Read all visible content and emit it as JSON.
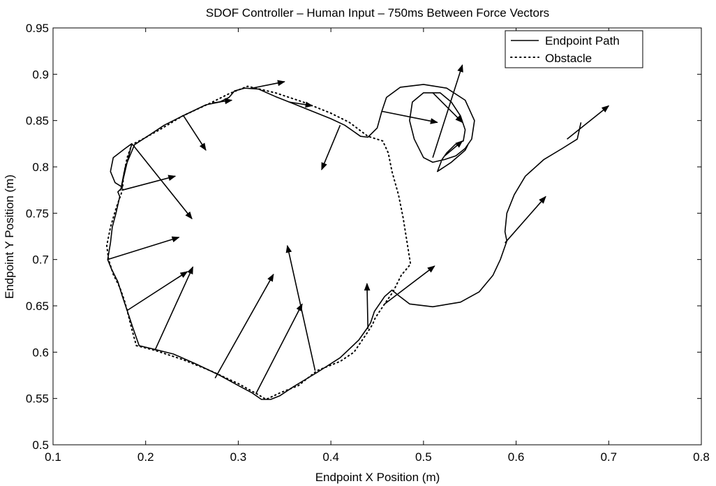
{
  "chart_data": {
    "type": "line",
    "title": "SDOF Controller – Human Input – 750ms Between Force Vectors",
    "xlabel": "Endpoint X Position (m)",
    "ylabel": "Endpoint Y Position (m)",
    "xlim": [
      0.1,
      0.8
    ],
    "ylim": [
      0.5,
      0.95
    ],
    "x_ticks": [
      0.1,
      0.2,
      0.3,
      0.4,
      0.5,
      0.6,
      0.7,
      0.8
    ],
    "y_ticks": [
      0.5,
      0.55,
      0.6,
      0.65,
      0.7,
      0.75,
      0.8,
      0.85,
      0.9,
      0.95
    ],
    "x_tick_labels": [
      "0.1",
      "0.2",
      "0.3",
      "0.4",
      "0.5",
      "0.6",
      "0.7",
      "0.8"
    ],
    "y_tick_labels": [
      "0.5",
      "0.55",
      "0.6",
      "0.65",
      "0.7",
      "0.75",
      "0.8",
      "0.85",
      "0.9",
      "0.95"
    ],
    "grid": false,
    "legend_position": "top-right",
    "legend": [
      {
        "label": "Endpoint Path",
        "style": "solid"
      },
      {
        "label": "Obstacle",
        "style": "dotted"
      }
    ],
    "series": [
      {
        "name": "Endpoint Path",
        "style": "solid",
        "color": "#000000",
        "points": [
          [
            0.67,
            0.848
          ],
          [
            0.666,
            0.83
          ],
          [
            0.65,
            0.82
          ],
          [
            0.63,
            0.808
          ],
          [
            0.61,
            0.79
          ],
          [
            0.598,
            0.77
          ],
          [
            0.59,
            0.75
          ],
          [
            0.588,
            0.73
          ],
          [
            0.59,
            0.72
          ],
          [
            0.583,
            0.7
          ],
          [
            0.575,
            0.683
          ],
          [
            0.56,
            0.665
          ],
          [
            0.54,
            0.654
          ],
          [
            0.51,
            0.649
          ],
          [
            0.485,
            0.652
          ],
          [
            0.472,
            0.662
          ],
          [
            0.466,
            0.667
          ],
          [
            0.458,
            0.66
          ],
          [
            0.447,
            0.644
          ],
          [
            0.443,
            0.632
          ],
          [
            0.44,
            0.627
          ],
          [
            0.43,
            0.613
          ],
          [
            0.41,
            0.594
          ],
          [
            0.385,
            0.578
          ],
          [
            0.36,
            0.563
          ],
          [
            0.345,
            0.553
          ],
          [
            0.335,
            0.549
          ],
          [
            0.325,
            0.549
          ],
          [
            0.315,
            0.556
          ],
          [
            0.3,
            0.564
          ],
          [
            0.28,
            0.575
          ],
          [
            0.255,
            0.587
          ],
          [
            0.23,
            0.598
          ],
          [
            0.21,
            0.603
          ],
          [
            0.193,
            0.607
          ],
          [
            0.186,
            0.627
          ],
          [
            0.18,
            0.645
          ],
          [
            0.175,
            0.66
          ],
          [
            0.17,
            0.676
          ],
          [
            0.163,
            0.69
          ],
          [
            0.159,
            0.7
          ],
          [
            0.162,
            0.718
          ],
          [
            0.164,
            0.735
          ],
          [
            0.168,
            0.75
          ],
          [
            0.172,
            0.768
          ],
          [
            0.17,
            0.773
          ],
          [
            0.175,
            0.778
          ],
          [
            0.167,
            0.783
          ],
          [
            0.162,
            0.795
          ],
          [
            0.165,
            0.81
          ],
          [
            0.178,
            0.82
          ],
          [
            0.185,
            0.825
          ],
          [
            0.18,
            0.805
          ],
          [
            0.173,
            0.775
          ],
          [
            0.178,
            0.8
          ],
          [
            0.188,
            0.824
          ],
          [
            0.205,
            0.835
          ],
          [
            0.22,
            0.845
          ],
          [
            0.24,
            0.855
          ],
          [
            0.265,
            0.867
          ],
          [
            0.28,
            0.87
          ],
          [
            0.29,
            0.875
          ],
          [
            0.296,
            0.882
          ],
          [
            0.307,
            0.885
          ],
          [
            0.322,
            0.884
          ],
          [
            0.34,
            0.876
          ],
          [
            0.36,
            0.868
          ],
          [
            0.38,
            0.86
          ],
          [
            0.4,
            0.852
          ],
          [
            0.415,
            0.845
          ],
          [
            0.425,
            0.838
          ],
          [
            0.432,
            0.833
          ],
          [
            0.44,
            0.832
          ],
          [
            0.45,
            0.842
          ],
          [
            0.455,
            0.86
          ],
          [
            0.46,
            0.875
          ],
          [
            0.475,
            0.886
          ],
          [
            0.5,
            0.889
          ],
          [
            0.525,
            0.885
          ],
          [
            0.545,
            0.872
          ],
          [
            0.555,
            0.85
          ],
          [
            0.552,
            0.83
          ],
          [
            0.545,
            0.82
          ],
          [
            0.535,
            0.812
          ],
          [
            0.523,
            0.808
          ],
          [
            0.51,
            0.805
          ],
          [
            0.5,
            0.81
          ],
          [
            0.49,
            0.83
          ],
          [
            0.485,
            0.85
          ],
          [
            0.488,
            0.87
          ],
          [
            0.5,
            0.88
          ],
          [
            0.518,
            0.88
          ],
          [
            0.53,
            0.87
          ],
          [
            0.54,
            0.855
          ],
          [
            0.545,
            0.84
          ],
          [
            0.543,
            0.828
          ],
          [
            0.534,
            0.824
          ],
          [
            0.525,
            0.815
          ],
          [
            0.52,
            0.808
          ],
          [
            0.515,
            0.795
          ],
          [
            0.53,
            0.805
          ],
          [
            0.545,
            0.818
          ],
          [
            0.548,
            0.824
          ]
        ]
      },
      {
        "name": "Obstacle",
        "style": "dotted",
        "color": "#000000",
        "points": [
          [
            0.19,
            0.607
          ],
          [
            0.21,
            0.602
          ],
          [
            0.24,
            0.592
          ],
          [
            0.27,
            0.58
          ],
          [
            0.3,
            0.566
          ],
          [
            0.32,
            0.555
          ],
          [
            0.33,
            0.549
          ],
          [
            0.345,
            0.556
          ],
          [
            0.365,
            0.564
          ],
          [
            0.385,
            0.58
          ],
          [
            0.41,
            0.59
          ],
          [
            0.425,
            0.6
          ],
          [
            0.44,
            0.622
          ],
          [
            0.445,
            0.63
          ],
          [
            0.448,
            0.637
          ],
          [
            0.458,
            0.652
          ],
          [
            0.467,
            0.665
          ],
          [
            0.476,
            0.683
          ],
          [
            0.486,
            0.695
          ],
          [
            0.482,
            0.72
          ],
          [
            0.478,
            0.745
          ],
          [
            0.473,
            0.77
          ],
          [
            0.466,
            0.795
          ],
          [
            0.462,
            0.815
          ],
          [
            0.456,
            0.828
          ],
          [
            0.44,
            0.833
          ],
          [
            0.42,
            0.848
          ],
          [
            0.4,
            0.858
          ],
          [
            0.37,
            0.87
          ],
          [
            0.34,
            0.88
          ],
          [
            0.31,
            0.887
          ],
          [
            0.29,
            0.879
          ],
          [
            0.27,
            0.869
          ],
          [
            0.24,
            0.855
          ],
          [
            0.215,
            0.84
          ],
          [
            0.195,
            0.829
          ],
          [
            0.185,
            0.824
          ],
          [
            0.18,
            0.81
          ],
          [
            0.176,
            0.79
          ],
          [
            0.175,
            0.775
          ],
          [
            0.168,
            0.755
          ],
          [
            0.162,
            0.735
          ],
          [
            0.158,
            0.715
          ],
          [
            0.16,
            0.7
          ],
          [
            0.165,
            0.684
          ],
          [
            0.172,
            0.67
          ],
          [
            0.177,
            0.656
          ],
          [
            0.18,
            0.645
          ],
          [
            0.185,
            0.625
          ],
          [
            0.19,
            0.607
          ]
        ]
      }
    ],
    "force_vectors": [
      [
        0.186,
        0.824,
        0.25,
        0.744
      ],
      [
        0.175,
        0.775,
        0.232,
        0.79
      ],
      [
        0.159,
        0.7,
        0.236,
        0.724
      ],
      [
        0.18,
        0.645,
        0.245,
        0.687
      ],
      [
        0.21,
        0.602,
        0.251,
        0.692
      ],
      [
        0.241,
        0.855,
        0.265,
        0.818
      ],
      [
        0.275,
        0.572,
        0.338,
        0.684
      ],
      [
        0.319,
        0.555,
        0.369,
        0.652
      ],
      [
        0.383,
        0.58,
        0.353,
        0.715
      ],
      [
        0.44,
        0.625,
        0.439,
        0.674
      ],
      [
        0.458,
        0.652,
        0.512,
        0.693
      ],
      [
        0.272,
        0.869,
        0.293,
        0.872
      ],
      [
        0.315,
        0.885,
        0.35,
        0.892
      ],
      [
        0.355,
        0.87,
        0.38,
        0.866
      ],
      [
        0.41,
        0.845,
        0.39,
        0.797
      ],
      [
        0.455,
        0.86,
        0.515,
        0.848
      ],
      [
        0.51,
        0.81,
        0.542,
        0.91
      ],
      [
        0.51,
        0.88,
        0.542,
        0.848
      ],
      [
        0.523,
        0.812,
        0.542,
        0.828
      ],
      [
        0.588,
        0.718,
        0.632,
        0.768
      ],
      [
        0.655,
        0.83,
        0.7,
        0.866
      ]
    ]
  }
}
